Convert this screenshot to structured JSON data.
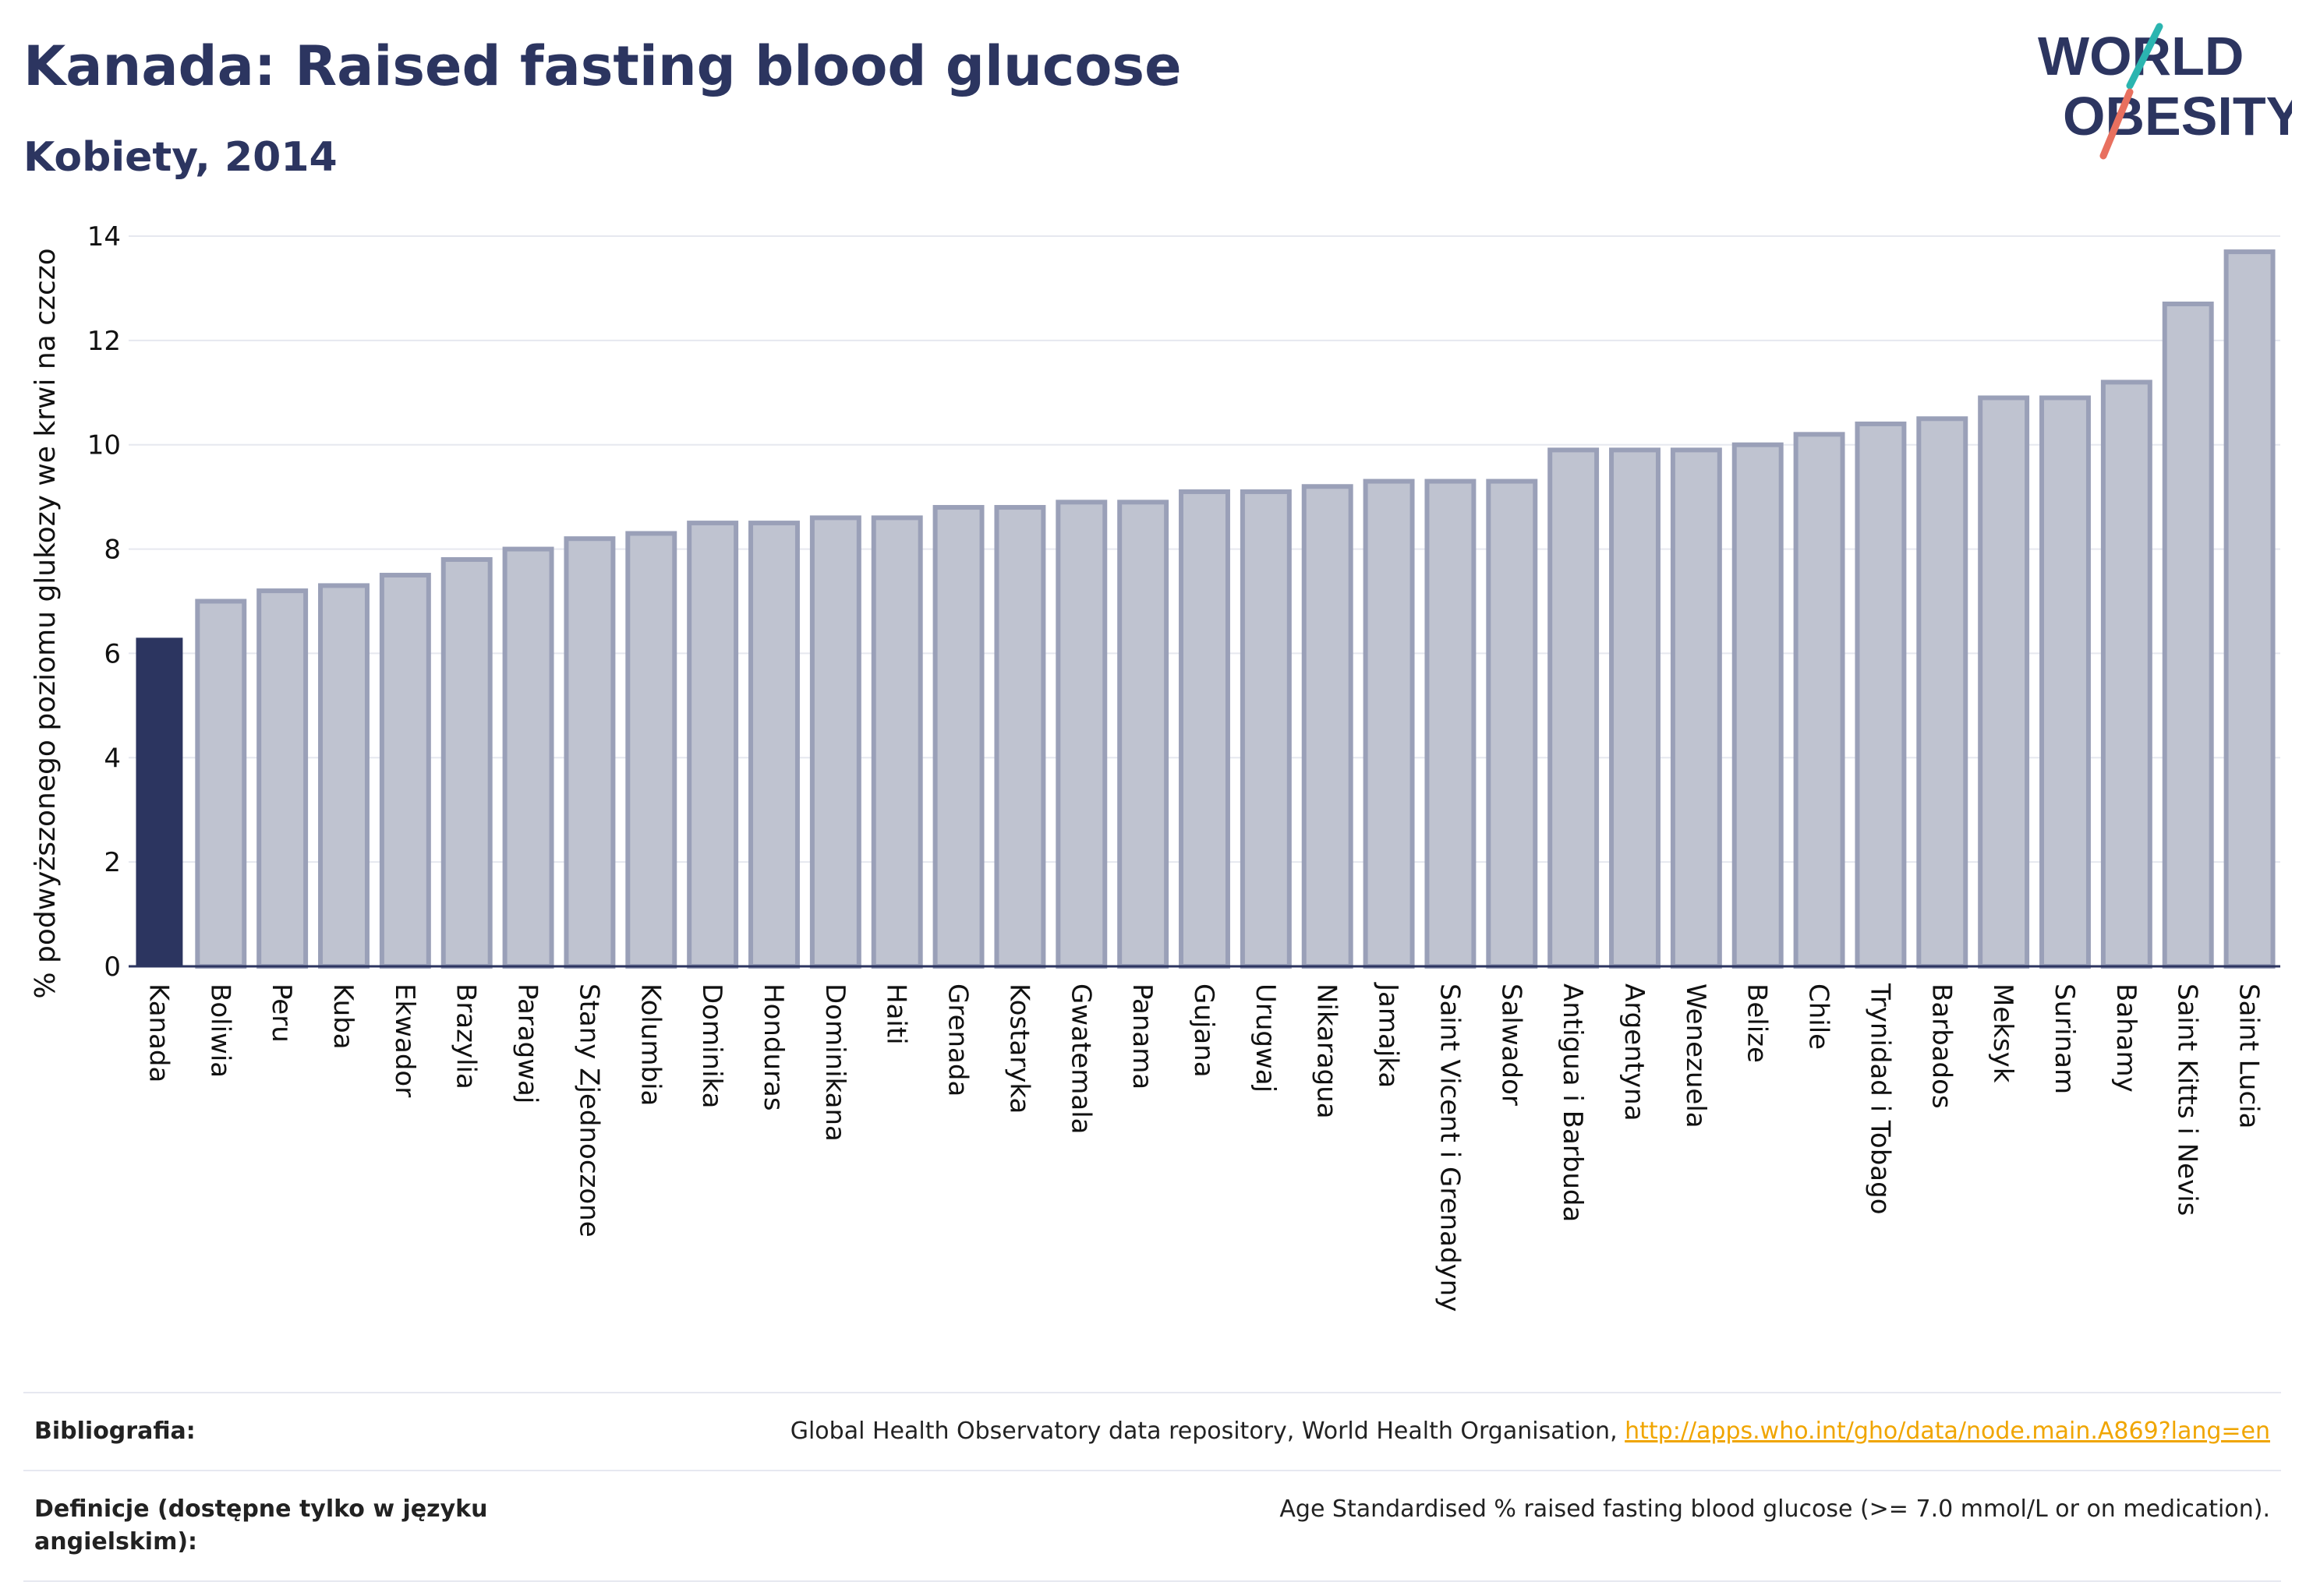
{
  "header": {
    "title": "Kanada: Raised fasting blood glucose",
    "subtitle": "Kobiety, 2014"
  },
  "logo": {
    "line1": "WORLD",
    "line2": "OBESITY"
  },
  "colors": {
    "highlight": "#2c3560",
    "bar": "#bfc3d0",
    "bar_border": "#9aa0b8",
    "text": "#2c3560",
    "link": "#f0a500",
    "logo_teal": "#2bb5b0",
    "logo_coral": "#e8705f"
  },
  "chart_data": {
    "type": "bar",
    "title": "Kanada: Raised fasting blood glucose",
    "subtitle": "Kobiety, 2014",
    "ylabel": "% podwyższonego poziomu glukozy we krwi na czczo",
    "xlabel": "",
    "ylim": [
      0,
      14
    ],
    "yticks": [
      0,
      2,
      4,
      6,
      8,
      10,
      12,
      14
    ],
    "grid": true,
    "highlight": "Kanada",
    "categories": [
      "Kanada",
      "Boliwia",
      "Peru",
      "Kuba",
      "Ekwador",
      "Brazylia",
      "Paragwaj",
      "Stany Zjednoczone",
      "Kolumbia",
      "Dominika",
      "Honduras",
      "Dominikana",
      "Haiti",
      "Grenada",
      "Kostaryka",
      "Gwatemala",
      "Panama",
      "Gujana",
      "Urugwaj",
      "Nikaragua",
      "Jamajka",
      "Saint Vicent i Grenadyny",
      "Salwador",
      "Antigua i Barbuda",
      "Argentyna",
      "Wenezuela",
      "Belize",
      "Chile",
      "Trynidad i Tobago",
      "Barbados",
      "Meksyk",
      "Surinam",
      "Bahamy",
      "Saint Kitts i Nevis",
      "Saint Lucia"
    ],
    "values": [
      6.3,
      7.0,
      7.2,
      7.3,
      7.5,
      7.8,
      8.0,
      8.2,
      8.3,
      8.5,
      8.5,
      8.6,
      8.6,
      8.8,
      8.8,
      8.9,
      8.9,
      9.1,
      9.1,
      9.2,
      9.3,
      9.3,
      9.3,
      9.9,
      9.9,
      9.9,
      10.0,
      10.2,
      10.4,
      10.5,
      10.9,
      10.9,
      11.2,
      12.7,
      13.7
    ]
  },
  "footer": {
    "bibliography_label": "Bibliografia:",
    "bibliography_text": "Global Health Observatory data repository, World Health Organisation, ",
    "bibliography_link": "http://apps.who.int/gho/data/node.main.A869?lang=en",
    "definitions_label": "Definicje (dostępne tylko w języku angielskim):",
    "definitions_text": "Age Standardised % raised fasting blood glucose (>= 7.0 mmol/L or on medication)."
  }
}
